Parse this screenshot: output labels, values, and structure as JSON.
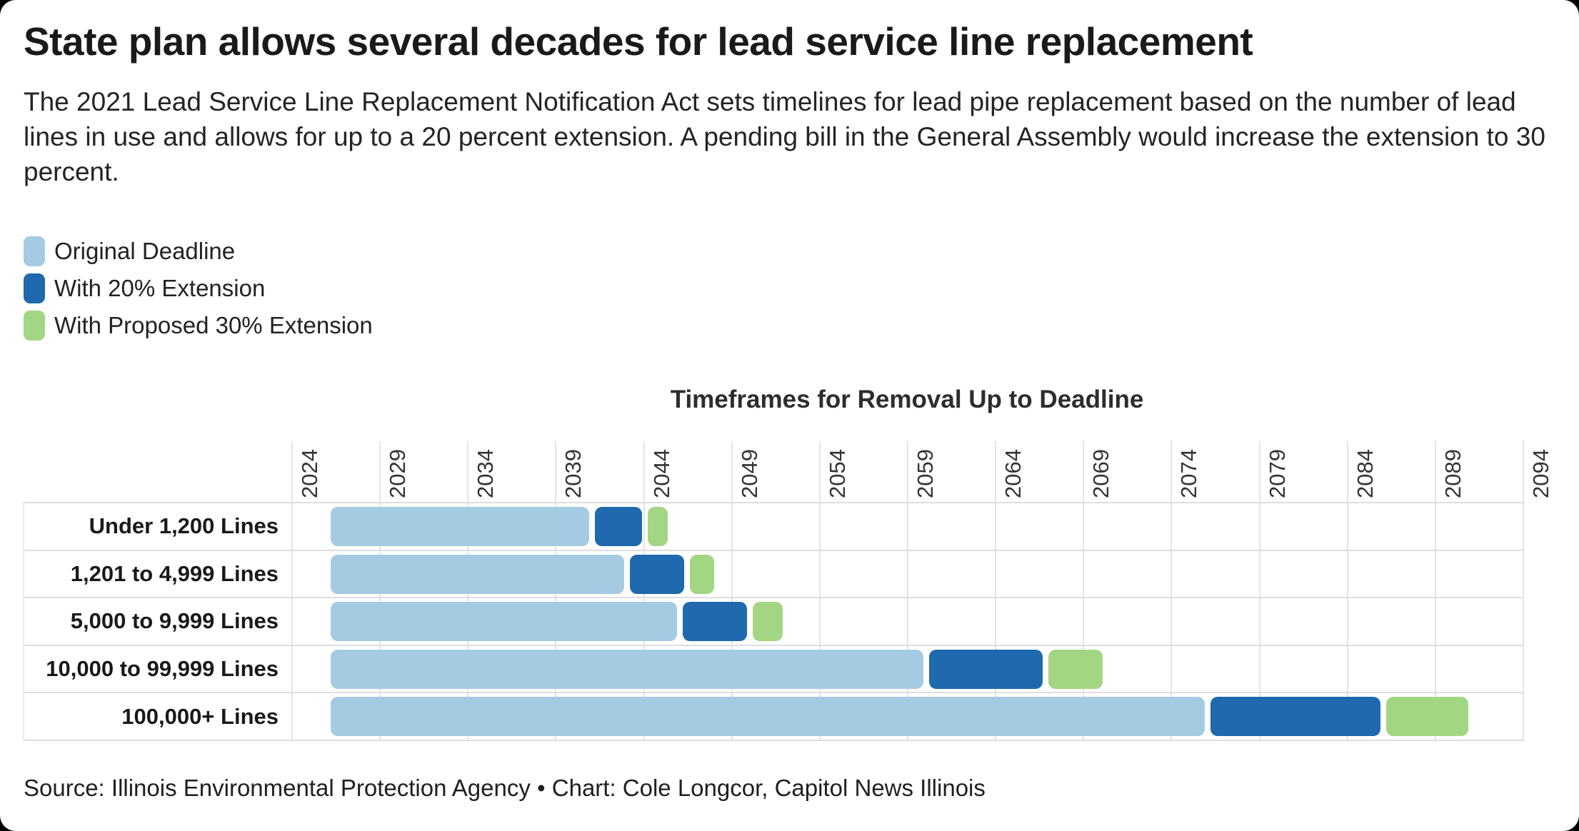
{
  "header": {
    "title": "State plan allows several decades for lead service line replacement",
    "subtitle": "The 2021 Lead Service Line Replacement Notification Act sets timelines for lead pipe replacement based on the number of lead lines in use and allows for up to a 20 percent extension. A pending bill in the General Assembly would increase the extension to 30 percent."
  },
  "legend": {
    "items": [
      {
        "label": "Original Deadline",
        "color": "#a5cbe2"
      },
      {
        "label": "With 20% Extension",
        "color": "#1f69ae"
      },
      {
        "label": "With Proposed 30% Extension",
        "color": "#a3d682"
      }
    ]
  },
  "chart_data": {
    "type": "bar",
    "variant": "horizontal-gantt-timeline",
    "title": "Timeframes for Removal Up to Deadline",
    "xlabel": "",
    "ylabel": "",
    "x_axis": {
      "min": 2024,
      "max": 2094,
      "tick_step": 5,
      "tick_labels": [
        "2024",
        "2029",
        "2034",
        "2039",
        "2044",
        "2049",
        "2054",
        "2059",
        "2064",
        "2069",
        "2074",
        "2079",
        "2084",
        "2089",
        "2094"
      ],
      "tick_label_rotation_deg": 90,
      "grid": true
    },
    "categories": [
      "Under 1,200 Lines",
      "1,201 to 4,999 Lines",
      "5,000 to 9,999 Lines",
      "10,000 to 99,999 Lines",
      "100,000+ Lines"
    ],
    "bars_start_year": 2026,
    "series": [
      {
        "name": "Original Deadline",
        "color": "#a5cbe2",
        "end_years": [
          2041,
          2043,
          2046,
          2060,
          2076
        ]
      },
      {
        "name": "With 20% Extension",
        "color": "#1f69ae",
        "end_years": [
          2044,
          2046.4,
          2050,
          2066.8,
          2086
        ]
      },
      {
        "name": "With Proposed 30% Extension",
        "color": "#a3d682",
        "end_years": [
          2045.5,
          2048.1,
          2052,
          2070.2,
          2091
        ]
      }
    ],
    "legend_position": "top-left",
    "colors": {
      "gridline": "#e4e4e6",
      "row_border": "#dedede",
      "axis_text": "#333333",
      "row_label_text": "#191919"
    }
  },
  "footer": {
    "source": "Source: Illinois Environmental Protection Agency • Chart: Cole Longcor, Capitol News Illinois"
  }
}
